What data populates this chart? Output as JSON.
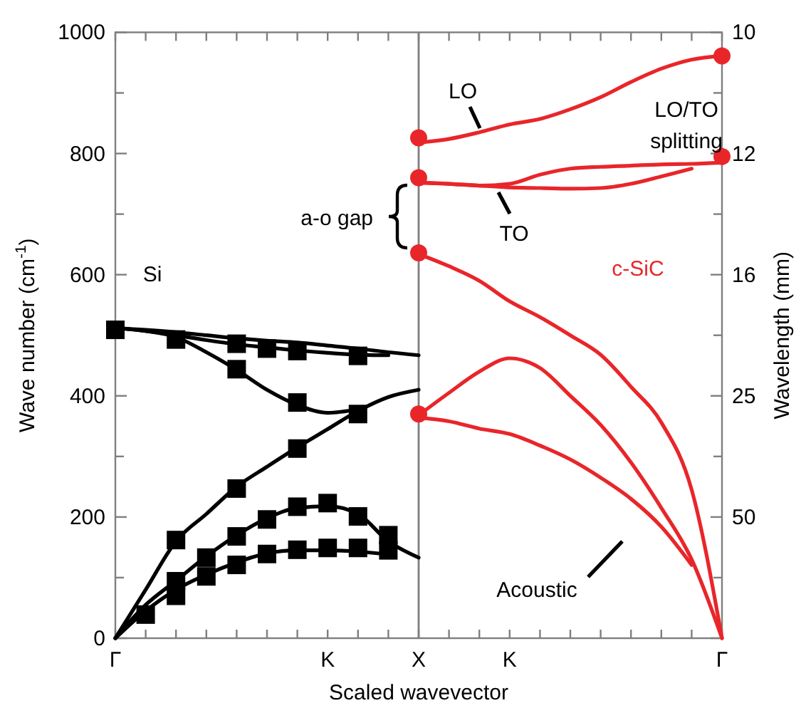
{
  "chart_data": {
    "type": "line",
    "xlabel": "Scaled wavevector",
    "ylabel": "Wave number (cm$^{-1}$)",
    "y2label": "Wavelength (mm)",
    "categories": [
      "Γ",
      null,
      null,
      null,
      null,
      null,
      null,
      "K",
      null,
      null,
      "X",
      null,
      null,
      "K",
      null,
      null,
      null,
      null,
      null,
      null,
      "Γ"
    ],
    "ylim": [
      0,
      1000
    ],
    "yticks": [
      0,
      {
        "value": 100,
        "label": null
      },
      200,
      {
        "value": 300,
        "label": null
      },
      400,
      {
        "value": 500,
        "label": null
      },
      600,
      {
        "value": 700,
        "label": null
      },
      800,
      {
        "value": 900,
        "label": null
      },
      1000
    ],
    "ref_lines": [
      {
        "axis": "x",
        "value": "X",
        "color": "#7f7f7f"
      }
    ],
    "annotations": [
      "a-o gap",
      "LO/TO splitting",
      "LO",
      "TO",
      "Acoustic",
      "10",
      "12",
      "16",
      "25",
      "50"
    ],
    "series": [
      {
        "color": "#000000",
        "values": [
          512,
          509,
          505,
          500,
          495,
          491,
          488,
          483,
          478,
          472,
          467,
          null,
          null,
          null,
          null,
          null,
          null,
          null,
          null,
          null,
          null
        ]
      },
      {
        "color": "#000000",
        "values": [
          512,
          507,
          500,
          492,
          485,
          480,
          475,
          471,
          468,
          467,
          null,
          null,
          null,
          null,
          null,
          null,
          null,
          null,
          null,
          null,
          null
        ]
      },
      {
        "color": "#000000",
        "values": [
          512,
          507,
          497,
          472,
          443,
          410,
          385,
          372,
          378,
          null,
          null,
          null,
          null,
          null,
          null,
          null,
          null,
          null,
          null,
          null,
          null
        ]
      },
      {
        "color": "#000000",
        "values": [
          0,
          80,
          160,
          205,
          250,
          283,
          315,
          345,
          375,
          398,
          410,
          null,
          null,
          null,
          null,
          null,
          null,
          null,
          null,
          null,
          null
        ]
      },
      {
        "color": "#000000",
        "values": [
          0,
          55,
          95,
          135,
          170,
          198,
          215,
          218,
          205,
          160,
          133,
          null,
          null,
          null,
          null,
          null,
          null,
          null,
          null,
          null,
          null
        ]
      },
      {
        "color": "#000000",
        "values": [
          0,
          45,
          80,
          105,
          125,
          140,
          145,
          145,
          143,
          138,
          null,
          null,
          null,
          null,
          null,
          null,
          null,
          null,
          null,
          null,
          null
        ]
      },
      {
        "type": "scatter",
        "name": "Si",
        "color": "#000000",
        "marker": "square",
        "values": [
          509,
          null,
          493,
          null,
          486,
          478,
          474,
          null,
          466,
          null,
          null,
          null,
          null,
          null,
          null,
          null,
          null,
          null,
          null,
          null,
          null
        ]
      },
      {
        "type": "scatter",
        "color": "#000000",
        "marker": "square",
        "values": [
          null,
          null,
          null,
          null,
          444,
          null,
          389,
          null,
          370,
          null,
          null,
          null,
          null,
          null,
          null,
          null,
          null,
          null,
          null,
          null,
          null
        ]
      },
      {
        "type": "scatter",
        "color": "#000000",
        "marker": "square",
        "values": [
          null,
          null,
          162,
          null,
          247,
          null,
          313,
          null,
          null,
          null,
          null,
          null,
          null,
          null,
          null,
          null,
          null,
          null,
          null,
          null,
          null
        ]
      },
      {
        "type": "scatter",
        "color": "#000000",
        "marker": "square",
        "values": [
          null,
          null,
          94,
          133,
          168,
          196,
          217,
          223,
          201,
          170,
          null,
          null,
          null,
          null,
          null,
          null,
          null,
          null,
          null,
          null,
          null
        ]
      },
      {
        "type": "scatter",
        "color": "#000000",
        "marker": "square",
        "values": [
          null,
          39,
          70,
          102,
          121,
          139,
          146,
          149,
          149,
          145,
          null,
          null,
          null,
          null,
          null,
          null,
          null,
          null,
          null,
          null,
          null
        ]
      },
      {
        "color": "#e8262a",
        "values": [
          null,
          null,
          null,
          null,
          null,
          null,
          null,
          null,
          null,
          null,
          818,
          824,
          835,
          848,
          857,
          873,
          893,
          918,
          940,
          955,
          961
        ]
      },
      {
        "color": "#e8262a",
        "values": [
          null,
          null,
          null,
          null,
          null,
          null,
          null,
          null,
          null,
          null,
          752,
          750,
          747,
          750,
          765,
          775,
          778,
          780,
          782,
          783,
          785
        ]
      },
      {
        "color": "#e8262a",
        "values": [
          null,
          null,
          null,
          null,
          null,
          null,
          null,
          null,
          null,
          null,
          752,
          750,
          747,
          744,
          743,
          742,
          743,
          750,
          762,
          775,
          null
        ]
      },
      {
        "color": "#e8262a",
        "values": [
          null,
          null,
          null,
          null,
          null,
          null,
          null,
          null,
          null,
          null,
          634,
          614,
          590,
          556,
          530,
          500,
          468,
          415,
          356,
          245,
          0
        ]
      },
      {
        "color": "#e8262a",
        "values": [
          null,
          null,
          null,
          null,
          null,
          null,
          null,
          null,
          null,
          null,
          368,
          405,
          440,
          462,
          446,
          400,
          352,
          290,
          215,
          130,
          0
        ]
      },
      {
        "color": "#e8262a",
        "values": [
          null,
          null,
          null,
          null,
          null,
          null,
          null,
          null,
          null,
          null,
          364,
          358,
          346,
          337,
          318,
          295,
          265,
          230,
          184,
          121,
          null
        ]
      },
      {
        "type": "scatter",
        "name": "c-SiC",
        "color": "#e8262a",
        "marker": "circle",
        "values": [
          null,
          null,
          null,
          null,
          null,
          null,
          null,
          null,
          null,
          null,
          826,
          null,
          null,
          null,
          null,
          null,
          null,
          null,
          null,
          null,
          961
        ]
      },
      {
        "type": "scatter",
        "color": "#e8262a",
        "marker": "circle",
        "values": [
          null,
          null,
          null,
          null,
          null,
          null,
          null,
          null,
          null,
          null,
          760,
          null,
          null,
          null,
          null,
          null,
          null,
          null,
          null,
          null,
          795
        ]
      },
      {
        "type": "scatter",
        "color": "#e8262a",
        "marker": "circle",
        "values": [
          null,
          null,
          null,
          null,
          null,
          null,
          null,
          null,
          null,
          null,
          636,
          null,
          null,
          null,
          null,
          null,
          null,
          null,
          null,
          null,
          null
        ]
      },
      {
        "type": "scatter",
        "color": "#e8262a",
        "marker": "circle",
        "values": [
          null,
          null,
          null,
          null,
          null,
          null,
          null,
          null,
          null,
          null,
          370,
          null,
          null,
          null,
          null,
          null,
          null,
          null,
          null,
          null,
          null
        ]
      }
    ]
  }
}
